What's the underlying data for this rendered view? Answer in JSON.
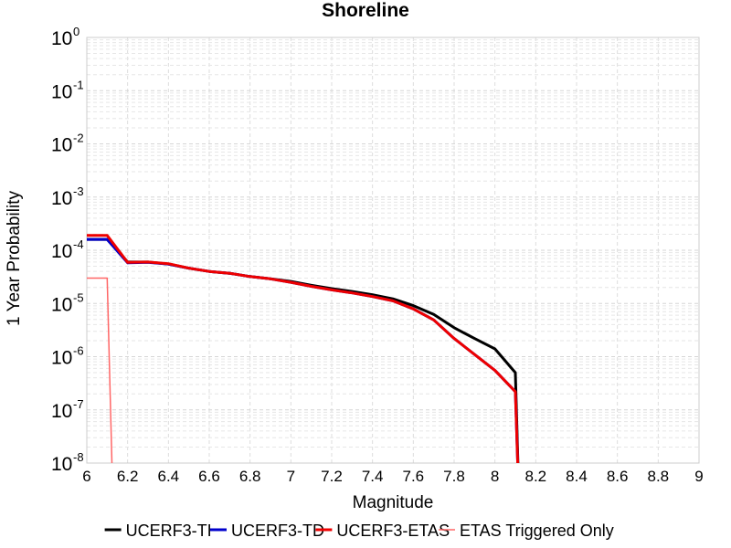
{
  "chart_data": {
    "type": "line",
    "title": "Shoreline",
    "xlabel": "Magnitude",
    "ylabel": "1 Year Probability",
    "xlim": [
      6,
      9
    ],
    "ylim": [
      1e-08,
      1
    ],
    "yscale": "log",
    "grid": true,
    "legend_position": "bottom",
    "x_ticks": [
      "6",
      "6.2",
      "6.4",
      "6.6",
      "6.8",
      "7",
      "7.2",
      "7.4",
      "7.6",
      "7.8",
      "8",
      "8.2",
      "8.4",
      "8.6",
      "8.8",
      "9"
    ],
    "y_ticks": [
      {
        "base": "10",
        "exp": "0"
      },
      {
        "base": "10",
        "exp": "-1"
      },
      {
        "base": "10",
        "exp": "-2"
      },
      {
        "base": "10",
        "exp": "-3"
      },
      {
        "base": "10",
        "exp": "-4"
      },
      {
        "base": "10",
        "exp": "-5"
      },
      {
        "base": "10",
        "exp": "-6"
      },
      {
        "base": "10",
        "exp": "-7"
      },
      {
        "base": "10",
        "exp": "-8"
      }
    ],
    "series": [
      {
        "name": "UCERF3-TI",
        "color": "#000000",
        "width": 3,
        "x": [
          6.0,
          6.1,
          6.2,
          6.3,
          6.4,
          6.5,
          6.6,
          6.7,
          6.8,
          6.9,
          7.0,
          7.1,
          7.2,
          7.3,
          7.4,
          7.5,
          7.6,
          7.7,
          7.8,
          7.9,
          8.0,
          8.1,
          8.12
        ],
        "y": [
          0.00016,
          0.00016,
          6e-05,
          6e-05,
          5.5e-05,
          4.6e-05,
          4e-05,
          3.7e-05,
          3.2e-05,
          2.9e-05,
          2.6e-05,
          2.2e-05,
          1.9e-05,
          1.68e-05,
          1.46e-05,
          1.22e-05,
          9.1e-06,
          6.2e-06,
          3.5e-06,
          2.2e-06,
          1.4e-06,
          5e-07,
          1e-09
        ]
      },
      {
        "name": "UCERF3-TD",
        "color": "#0000cc",
        "width": 3,
        "x": [
          6.0,
          6.1,
          6.2,
          6.3,
          6.4,
          6.5,
          6.6,
          6.7,
          6.8,
          6.9,
          7.0,
          7.1,
          7.2,
          7.3,
          7.4,
          7.5,
          7.6,
          7.7,
          7.8,
          7.9,
          8.0,
          8.1,
          8.12
        ],
        "y": [
          0.00016,
          0.00016,
          5.8e-05,
          5.9e-05,
          5.5e-05,
          4.6e-05,
          4e-05,
          3.7e-05,
          3.2e-05,
          2.9e-05,
          2.5e-05,
          2.1e-05,
          1.8e-05,
          1.58e-05,
          1.35e-05,
          1.12e-05,
          7.9e-06,
          4.9e-06,
          2.2e-06,
          1.1e-06,
          5.5e-07,
          2.2e-07,
          1e-09
        ]
      },
      {
        "name": "UCERF3-ETAS",
        "color": "#ee0000",
        "width": 3,
        "x": [
          6.0,
          6.1,
          6.2,
          6.3,
          6.4,
          6.5,
          6.6,
          6.7,
          6.8,
          6.9,
          7.0,
          7.1,
          7.2,
          7.3,
          7.4,
          7.5,
          7.6,
          7.7,
          7.8,
          7.9,
          8.0,
          8.1,
          8.12
        ],
        "y": [
          0.00019,
          0.00019,
          5.9e-05,
          6e-05,
          5.6e-05,
          4.6e-05,
          4e-05,
          3.7e-05,
          3.2e-05,
          2.9e-05,
          2.5e-05,
          2.1e-05,
          1.8e-05,
          1.58e-05,
          1.35e-05,
          1.12e-05,
          7.9e-06,
          4.9e-06,
          2.2e-06,
          1.1e-06,
          5.5e-07,
          2.2e-07,
          1e-09
        ]
      },
      {
        "name": "ETAS Triggered Only",
        "color": "#ff6666",
        "width": 1.5,
        "x": [
          6.0,
          6.1,
          6.13
        ],
        "y": [
          3e-05,
          3e-05,
          1e-09
        ]
      }
    ]
  }
}
